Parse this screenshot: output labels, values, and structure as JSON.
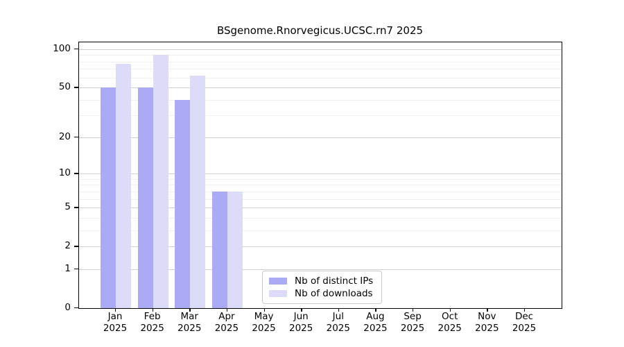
{
  "chart_data": {
    "type": "bar",
    "title": "BSgenome.Rnorvegicus.UCSC.rn7 2025",
    "scale": "log1p",
    "grid": true,
    "ylim": [
      0,
      100
    ],
    "y_ticks": [
      0,
      1,
      2,
      5,
      10,
      20,
      50,
      100
    ],
    "y_minor_gridlines": [
      3,
      4,
      6,
      7,
      8,
      9,
      30,
      40,
      60,
      70,
      80,
      90
    ],
    "categories": [
      {
        "label": "Jan",
        "sublabel": "2025"
      },
      {
        "label": "Feb",
        "sublabel": "2025"
      },
      {
        "label": "Mar",
        "sublabel": "2025"
      },
      {
        "label": "Apr",
        "sublabel": "2025"
      },
      {
        "label": "May",
        "sublabel": "2025"
      },
      {
        "label": "Jun",
        "sublabel": "2025"
      },
      {
        "label": "Jul",
        "sublabel": "2025"
      },
      {
        "label": "Aug",
        "sublabel": "2025"
      },
      {
        "label": "Sep",
        "sublabel": "2025"
      },
      {
        "label": "Oct",
        "sublabel": "2025"
      },
      {
        "label": "Nov",
        "sublabel": "2025"
      },
      {
        "label": "Dec",
        "sublabel": "2025"
      }
    ],
    "series": [
      {
        "name": "Nb of distinct IPs",
        "color": "#aaaaf5",
        "values": [
          50,
          50,
          40,
          7,
          null,
          null,
          null,
          null,
          null,
          null,
          null,
          null
        ]
      },
      {
        "name": "Nb of downloads",
        "color": "#dcdcf8",
        "values": [
          77,
          91,
          62,
          7,
          null,
          null,
          null,
          null,
          null,
          null,
          null,
          null
        ]
      }
    ],
    "legend": {
      "position": "bottom-center"
    }
  }
}
